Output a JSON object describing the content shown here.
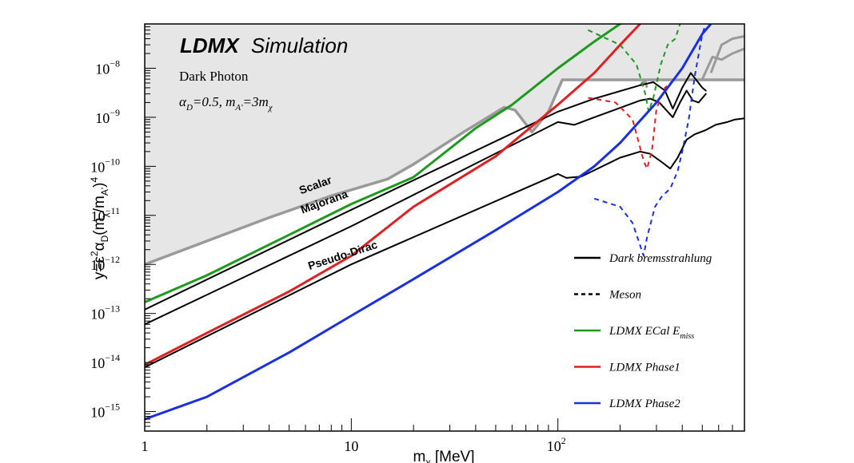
{
  "chart_data": {
    "type": "line",
    "title": "LDMX Simulation",
    "title_bold": "LDMX",
    "title_rest": "Simulation",
    "subtitle": "Dark Photon",
    "params": {
      "alpha": "α",
      "D": "D",
      "eq1": "=0.5, ",
      "m": "m",
      "Ap": "A'",
      "eq2": "=3m",
      "chi": "χ"
    },
    "xlabel": {
      "m": "m",
      "sub": "χ",
      "unit": " [MeV]"
    },
    "ylabel": {
      "a": "y=ε",
      "a2": "2",
      "b": "α",
      "bsub": "D",
      "c": "(m",
      "csub": "χ",
      "d": "/m",
      "dsub": "A'",
      "e": ")",
      "esup": "4"
    },
    "x_scale": "log",
    "y_scale": "log",
    "xlim": [
      1,
      800
    ],
    "ylim": [
      4e-16,
      8e-08
    ],
    "x_ticks": [
      {
        "value": 1,
        "base": "1",
        "exp": ""
      },
      {
        "value": 10,
        "base": "10",
        "exp": ""
      },
      {
        "value": 100,
        "base": "10",
        "exp": "2"
      }
    ],
    "y_ticks": [
      {
        "value": 1e-15,
        "base": "10",
        "exp": "−15"
      },
      {
        "value": 1e-14,
        "base": "10",
        "exp": "−14"
      },
      {
        "value": 1e-13,
        "base": "10",
        "exp": "−13"
      },
      {
        "value": 1e-12,
        "base": "10",
        "exp": "−12"
      },
      {
        "value": 1e-11,
        "base": "10",
        "exp": "−11"
      },
      {
        "value": 1e-10,
        "base": "10",
        "exp": "−10"
      },
      {
        "value": 1e-09,
        "base": "10",
        "exp": "−9"
      },
      {
        "value": 1e-08,
        "base": "10",
        "exp": "−8"
      }
    ],
    "excluded_region": {
      "fill": "#e6e6e6",
      "stroke": "#9a9a9a",
      "boundary": [
        [
          1,
          1e-12
        ],
        [
          2,
          3e-12
        ],
        [
          4,
          9e-12
        ],
        [
          8,
          2.5e-11
        ],
        [
          15,
          5.5e-11
        ],
        [
          20,
          1.1e-10
        ],
        [
          35,
          5e-10
        ],
        [
          55,
          1.6e-09
        ],
        [
          62,
          1.4e-09
        ],
        [
          75,
          5e-10
        ],
        [
          90,
          1.3e-09
        ],
        [
          105,
          5.8e-09
        ],
        [
          250,
          5.8e-09
        ],
        [
          420,
          5.8e-09
        ],
        [
          800,
          5.8e-09
        ]
      ],
      "extra_lines": [
        [
          [
            250,
            4.5e-09
          ],
          [
            265,
            5.5e-09
          ],
          [
            270,
            4e-09
          ]
        ],
        [
          [
            500,
            6e-09
          ],
          [
            560,
            1.7e-08
          ],
          [
            620,
            1.5e-08
          ],
          [
            700,
            2e-08
          ],
          [
            800,
            2.5e-08
          ]
        ],
        [
          [
            550,
            8e-09
          ],
          [
            620,
            3e-08
          ],
          [
            700,
            4e-08
          ],
          [
            800,
            4.5e-08
          ]
        ]
      ]
    },
    "series": [
      {
        "name": "Dark bremsstrahlung",
        "key": "scalar",
        "color": "#000000",
        "dash": "solid",
        "width": 2,
        "points": [
          [
            1,
            1.2e-13
          ],
          [
            10,
            1.3e-11
          ],
          [
            100,
            1.3e-09
          ],
          [
            150,
            2.4e-09
          ],
          [
            250,
            4.5e-09
          ],
          [
            290,
            5.2e-09
          ],
          [
            330,
            3.5e-09
          ],
          [
            360,
            1.5e-09
          ],
          [
            400,
            4e-09
          ],
          [
            440,
            8e-09
          ],
          [
            500,
            4e-09
          ],
          [
            520,
            3.5e-09
          ]
        ]
      },
      {
        "name": "Dark bremsstrahlung",
        "key": "majorana",
        "color": "#000000",
        "dash": "solid",
        "width": 2,
        "points": [
          [
            1,
            6e-14
          ],
          [
            10,
            6e-12
          ],
          [
            100,
            8e-10
          ],
          [
            120,
            7e-10
          ],
          [
            150,
            1e-09
          ],
          [
            250,
            2.2e-09
          ],
          [
            280,
            2.4e-09
          ],
          [
            310,
            2e-09
          ],
          [
            340,
            1.3e-09
          ],
          [
            360,
            1e-09
          ],
          [
            390,
            2e-09
          ],
          [
            420,
            3.5e-09
          ],
          [
            450,
            2.2e-09
          ],
          [
            480,
            2e-09
          ],
          [
            520,
            3e-09
          ]
        ]
      },
      {
        "name": "Dark bremsstrahlung",
        "key": "pseudodirac",
        "color": "#000000",
        "dash": "solid",
        "width": 2,
        "points": [
          [
            1,
            8e-15
          ],
          [
            10,
            1e-12
          ],
          [
            100,
            7e-11
          ],
          [
            110,
            5.8e-11
          ],
          [
            130,
            6.2e-11
          ],
          [
            200,
            1.5e-10
          ],
          [
            250,
            2e-10
          ],
          [
            280,
            1.8e-10
          ],
          [
            320,
            1.2e-10
          ],
          [
            350,
            9e-11
          ],
          [
            380,
            1.5e-10
          ],
          [
            420,
            3.5e-10
          ],
          [
            460,
            4.5e-10
          ],
          [
            520,
            5.5e-10
          ],
          [
            580,
            7e-10
          ],
          [
            660,
            8e-10
          ],
          [
            720,
            9e-10
          ],
          [
            800,
            9.5e-10
          ]
        ]
      },
      {
        "name": "Meson",
        "key": "meson-green",
        "color": "#1c9a1c",
        "dash": "dash",
        "width": 2,
        "points": [
          [
            140,
            6e-08
          ],
          [
            200,
            3e-08
          ],
          [
            240,
            1.2e-08
          ],
          [
            265,
            3e-09
          ],
          [
            275,
            1.3e-09
          ],
          [
            290,
            2.5e-09
          ],
          [
            315,
            1.2e-08
          ],
          [
            340,
            3e-08
          ],
          [
            370,
            4e-08
          ],
          [
            390,
            8e-08
          ]
        ]
      },
      {
        "name": "Meson",
        "key": "meson-red",
        "color": "#e02020",
        "dash": "dash",
        "width": 2,
        "points": [
          [
            140,
            2.5e-09
          ],
          [
            190,
            2e-09
          ],
          [
            230,
            9e-10
          ],
          [
            260,
            1.3e-10
          ],
          [
            270,
            9e-11
          ],
          [
            285,
            2e-10
          ],
          [
            300,
            1.5e-09
          ],
          [
            330,
            4e-09
          ],
          [
            360,
            5.5e-09
          ],
          [
            390,
            9e-09
          ]
        ]
      },
      {
        "name": "Meson",
        "key": "meson-blue",
        "color": "#1a2fe0",
        "dash": "dash",
        "width": 2,
        "points": [
          [
            150,
            2.2e-11
          ],
          [
            200,
            1.5e-11
          ],
          [
            230,
            7e-12
          ],
          [
            260,
            1.5e-12
          ],
          [
            270,
            3.5e-12
          ],
          [
            295,
            1.5e-11
          ],
          [
            320,
            2.5e-11
          ],
          [
            350,
            3.5e-11
          ],
          [
            380,
            8e-11
          ],
          [
            400,
            2e-10
          ],
          [
            430,
            9e-10
          ],
          [
            460,
            7e-09
          ],
          [
            500,
            5e-08
          ],
          [
            520,
            8e-08
          ]
        ]
      },
      {
        "name": "LDMX ECal E_miss",
        "key": "green",
        "color": "#1c9a1c",
        "dash": "solid",
        "width": 3,
        "points": [
          [
            1,
            1.7e-13
          ],
          [
            2,
            6e-13
          ],
          [
            5,
            4e-12
          ],
          [
            10,
            1.7e-11
          ],
          [
            20,
            6e-11
          ],
          [
            40,
            6e-10
          ],
          [
            60,
            1.8e-09
          ],
          [
            100,
            1e-08
          ],
          [
            150,
            3.5e-08
          ],
          [
            200,
            8e-08
          ]
        ]
      },
      {
        "name": "LDMX Phase1",
        "key": "red",
        "color": "#e02020",
        "dash": "solid",
        "width": 3,
        "points": [
          [
            1,
            9e-15
          ],
          [
            2,
            4e-14
          ],
          [
            5,
            2.8e-13
          ],
          [
            10,
            1.5e-12
          ],
          [
            20,
            1.5e-11
          ],
          [
            50,
            1.6e-10
          ],
          [
            100,
            1.8e-09
          ],
          [
            150,
            8e-09
          ],
          [
            200,
            3e-08
          ],
          [
            250,
            8e-08
          ]
        ]
      },
      {
        "name": "LDMX Phase2",
        "key": "blue",
        "color": "#1a2fe0",
        "dash": "solid",
        "width": 3,
        "points": [
          [
            1,
            7e-16
          ],
          [
            2,
            2e-15
          ],
          [
            5,
            1.6e-14
          ],
          [
            10,
            9e-14
          ],
          [
            20,
            5e-13
          ],
          [
            50,
            5e-12
          ],
          [
            100,
            3e-11
          ],
          [
            150,
            1e-10
          ],
          [
            200,
            3e-10
          ],
          [
            300,
            2e-09
          ],
          [
            400,
            1e-08
          ],
          [
            500,
            5e-08
          ],
          [
            550,
            8e-08
          ]
        ]
      }
    ],
    "curve_labels": [
      {
        "text": "Scalar",
        "x": 6.8,
        "y": 3.5e-11,
        "angle": -20
      },
      {
        "text": "Majorana",
        "x": 7.5,
        "y": 1.6e-11,
        "angle": -20
      },
      {
        "text": "Pseudo-Dirac",
        "x": 9.2,
        "y": 1.3e-12,
        "angle": -18
      }
    ],
    "legend": {
      "placement": "bottom-right",
      "entries": [
        {
          "label": "Dark bremsstrahlung",
          "color": "#000000",
          "dash": "solid"
        },
        {
          "label": "Meson",
          "color": "#000000",
          "dash": "dash"
        },
        {
          "label": "LDMX ECal E",
          "sub": "miss",
          "color": "#1c9a1c",
          "dash": "solid"
        },
        {
          "label": "LDMX Phase1",
          "color": "#e02020",
          "dash": "solid"
        },
        {
          "label": "LDMX Phase2",
          "color": "#1a2fe0",
          "dash": "solid"
        }
      ]
    }
  }
}
